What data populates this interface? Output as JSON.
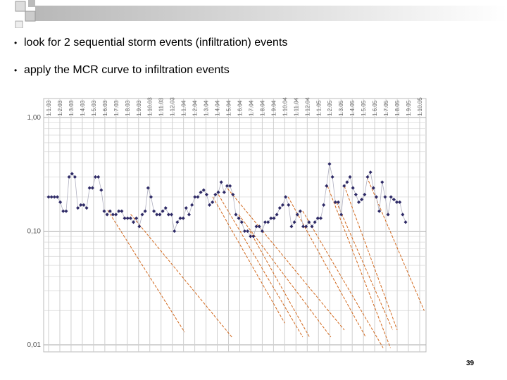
{
  "bullets": [
    "look for 2 sequential storm events (infiltration) events",
    "apply the MCR curve to infiltration events"
  ],
  "page_number": "39",
  "chart_data": {
    "type": "scatter",
    "log_y": true,
    "grid": true,
    "color": "#2e2a66",
    "line_color": "#d2691e",
    "categories": [
      "1.1.03",
      "1.2.03",
      "1.3.03",
      "1.4.03",
      "1.5.03",
      "1.6.03",
      "1.7.03",
      "1.8.03",
      "1.9.03",
      "1.10.03",
      "1.11.03",
      "1.12.03",
      "1.1.04",
      "1.2.04",
      "1.3.04",
      "1.4.04",
      "1.5.04",
      "1.6.04",
      "1.7.04",
      "1.8.04",
      "1.9.04",
      "1.10.04",
      "1.11.04",
      "1.12.04",
      "1.1.05",
      "1.2.05",
      "1.3.05",
      "1.4.05",
      "1.5.05",
      "1.6.05",
      "1.7.05",
      "1.8.05",
      "1.9.05",
      "1.10.05"
    ],
    "values": [
      0.2,
      0.2,
      0.2,
      0.2,
      0.18,
      0.15,
      0.15,
      0.3,
      0.32,
      0.3,
      0.16,
      0.17,
      0.17,
      0.16,
      0.24,
      0.24,
      0.3,
      0.3,
      0.23,
      0.15,
      0.14,
      0.15,
      0.14,
      0.14,
      0.15,
      0.15,
      0.13,
      0.13,
      0.13,
      0.12,
      0.13,
      0.11,
      0.14,
      0.15,
      0.24,
      0.2,
      0.15,
      0.14,
      0.14,
      0.15,
      0.16,
      0.14,
      0.14,
      0.1,
      0.12,
      0.13,
      0.13,
      0.16,
      0.14,
      0.17,
      0.2,
      0.2,
      0.22,
      0.23,
      0.21,
      0.17,
      0.18,
      0.21,
      0.22,
      0.27,
      0.22,
      0.25,
      0.25,
      0.21,
      0.14,
      0.13,
      0.12,
      0.1,
      0.1,
      0.09,
      0.09,
      0.11,
      0.11,
      0.1,
      0.12,
      0.12,
      0.13,
      0.13,
      0.14,
      0.16,
      0.17,
      0.2,
      0.17,
      0.11,
      0.12,
      0.14,
      0.15,
      0.11,
      0.11,
      0.12,
      0.11,
      0.12,
      0.13,
      0.13,
      0.17,
      0.25,
      0.39,
      0.3,
      0.18,
      0.18,
      0.14,
      0.25,
      0.27,
      0.3,
      0.24,
      0.21,
      0.18,
      0.19,
      0.21,
      0.3,
      0.33,
      0.24,
      0.2,
      0.15,
      0.27,
      0.2,
      0.14,
      0.2,
      0.19,
      0.18,
      0.18,
      0.14,
      0.12
    ],
    "mcr_lines": [
      {
        "x": [
          5.25,
          12.1
        ],
        "values": [
          0.153,
          0.0129
        ]
      },
      {
        "x": [
          7.3,
          16.3
        ],
        "values": [
          0.141,
          0.0117
        ]
      },
      {
        "x": [
          14.6,
          21.0
        ],
        "values": [
          0.2,
          0.0155
        ]
      },
      {
        "x": [
          15.1,
          22.6
        ],
        "values": [
          0.21,
          0.0117
        ]
      },
      {
        "x": [
          15.9,
          26.3
        ],
        "values": [
          0.238,
          0.0135
        ]
      },
      {
        "x": [
          16.9,
          25.1
        ],
        "values": [
          0.14,
          0.0117
        ]
      },
      {
        "x": [
          17.9,
          23.2
        ],
        "values": [
          0.1,
          0.0117
        ]
      },
      {
        "x": [
          21.3,
          28.2
        ],
        "values": [
          0.2,
          0.0117
        ]
      },
      {
        "x": [
          22.6,
          29.75
        ],
        "values": [
          0.15,
          0.0094
        ]
      },
      {
        "x": [
          24.8,
          30.4
        ],
        "values": [
          0.25,
          0.0094
        ]
      },
      {
        "x": [
          25.6,
          30.6
        ],
        "values": [
          0.18,
          0.0135
        ]
      },
      {
        "x": [
          26.3,
          31.0
        ],
        "values": [
          0.25,
          0.0135
        ]
      },
      {
        "x": [
          28.3,
          33.4
        ],
        "values": [
          0.3,
          0.02
        ]
      }
    ],
    "ylim": [
      0.01,
      1.0
    ],
    "yticks": [
      {
        "value": 0.01,
        "label": "0,01"
      },
      {
        "value": 0.1,
        "label": "0,10"
      },
      {
        "value": 1.0,
        "label": "1,00"
      }
    ]
  }
}
